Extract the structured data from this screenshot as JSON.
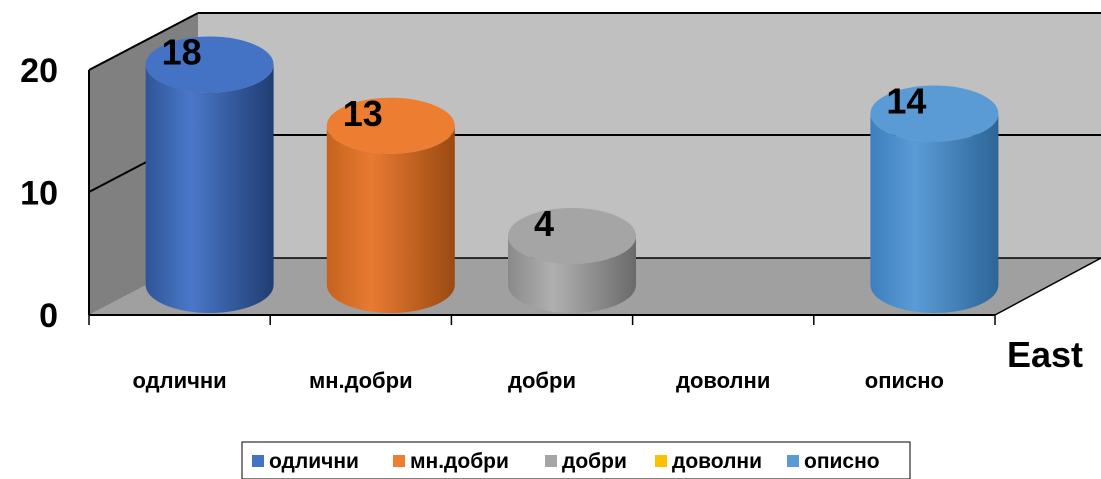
{
  "chart_data": {
    "type": "bar",
    "style": "3d-cylinder",
    "categories": [
      "одлични",
      "мн.добри",
      "добри",
      "доволни",
      "описно"
    ],
    "series": [
      {
        "values": [
          18,
          13,
          4,
          0,
          14
        ]
      }
    ],
    "colors": [
      "#4472C4",
      "#ED7D31",
      "#A5A5A5",
      "#FFC000",
      "#5B9BD5"
    ],
    "data_labels": [
      "18",
      "13",
      "4",
      "",
      "14"
    ],
    "xlabel": "East",
    "ylabel": "",
    "ylim": [
      0,
      20
    ],
    "yticks": [
      "0",
      "10",
      "20"
    ],
    "grid": true,
    "legend": {
      "position": "bottom",
      "entries": [
        "одлични",
        "мн.добри",
        "добри",
        "доволни",
        "описно"
      ]
    }
  }
}
